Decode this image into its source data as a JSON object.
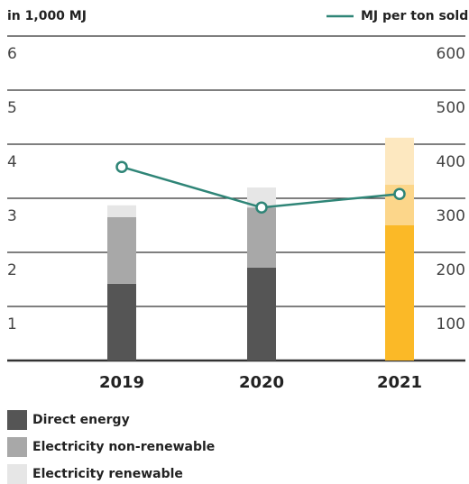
{
  "chart_data": {
    "type": "bar",
    "y_label": "in 1,000 MJ",
    "categories": [
      "2019",
      "2020",
      "2021"
    ],
    "series": [
      {
        "name": "Direct energy",
        "color": "#555555",
        "highlight_color": "#fbb927",
        "values": [
          1.42,
          1.72,
          2.5
        ]
      },
      {
        "name": "Electricity non-renewable",
        "color": "#a8a8a8",
        "highlight_color": "#fcd68a",
        "values": [
          1.23,
          1.11,
          0.75
        ]
      },
      {
        "name": "Electricity renewable",
        "color": "#e6e6e6",
        "highlight_color": "#fde8c0",
        "values": [
          0.22,
          0.37,
          0.87
        ]
      },
      {
        "name": "MJ per ton sold",
        "type": "line",
        "axis": "y2",
        "color": "#2f8577",
        "values": [
          358,
          283,
          308
        ]
      }
    ],
    "highlight_category": "2021",
    "ylim": [
      0,
      6
    ],
    "yticks": [
      1,
      2,
      3,
      4,
      5,
      6
    ],
    "y2lim": [
      0,
      600
    ],
    "y2ticks": [
      100,
      200,
      300,
      400,
      500,
      600
    ],
    "grid": true
  }
}
